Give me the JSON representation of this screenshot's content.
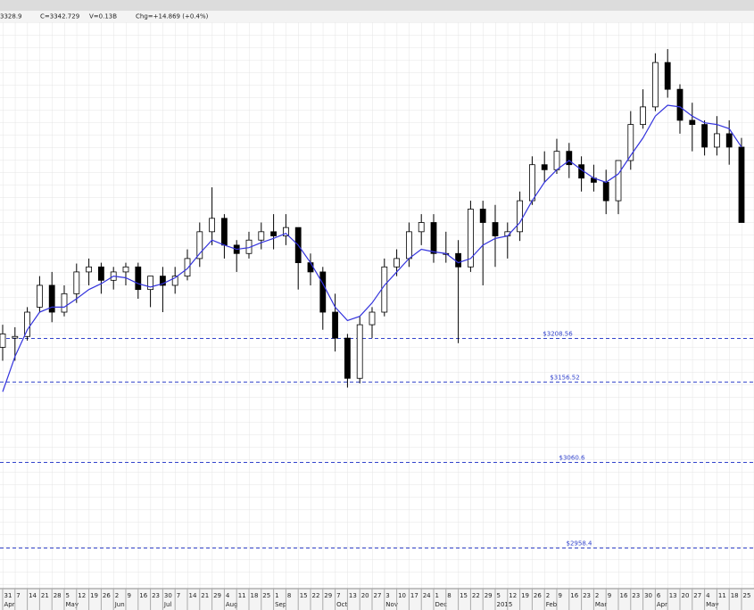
{
  "chart_data": {
    "type": "candlestick",
    "header": [
      "3328.9",
      "C=3342.729",
      "V=0.13B",
      "Chg=+14.869 (+0.4%)"
    ],
    "categories": [
      "31",
      "7",
      "14",
      "21",
      "28",
      "5",
      "12",
      "19",
      "26",
      "2",
      "9",
      "16",
      "23",
      "30",
      "7",
      "14",
      "21",
      "29",
      "4",
      "11",
      "18",
      "25",
      "1",
      "8",
      "15",
      "22",
      "29",
      "7",
      "13",
      "20",
      "27",
      "3",
      "10",
      "17",
      "24",
      "1",
      "8",
      "15",
      "22",
      "29",
      "5",
      "12",
      "19",
      "26",
      "2",
      "9",
      "16",
      "23",
      "2",
      "9",
      "16",
      "23",
      "30",
      "6",
      "13",
      "20",
      "27",
      "4",
      "11",
      "18",
      "25"
    ],
    "month_labels": [
      "Apr",
      null,
      null,
      null,
      null,
      "May",
      null,
      null,
      null,
      "Jun",
      null,
      null,
      null,
      "Jul",
      null,
      null,
      null,
      null,
      "Aug",
      null,
      null,
      null,
      "Sep",
      null,
      null,
      null,
      null,
      "Oct",
      null,
      null,
      null,
      "Nov",
      null,
      null,
      null,
      "Dec",
      null,
      null,
      null,
      null,
      "2015",
      null,
      null,
      null,
      "Feb",
      null,
      null,
      null,
      "Mar",
      null,
      null,
      null,
      null,
      "Apr",
      null,
      null,
      null,
      "May",
      null,
      null,
      null
    ],
    "open": [
      3198,
      3209,
      3211,
      3246,
      3272,
      3240,
      3262,
      3288,
      3294,
      3278,
      3288,
      3294,
      3267,
      3283,
      3272,
      3283,
      3304,
      3336,
      3352,
      3320,
      3310,
      3326,
      3336,
      3331,
      3341,
      3299,
      3288,
      3240,
      3209,
      3161,
      3225,
      3240,
      3294,
      3304,
      3336,
      3347,
      3310,
      3310,
      3294,
      3363,
      3347,
      3331,
      3336,
      3373,
      3416,
      3410,
      3432,
      3416,
      3400,
      3395,
      3373,
      3421,
      3464,
      3485,
      3538,
      3506,
      3469,
      3464,
      3437,
      3453,
      3437
    ],
    "high": [
      3225,
      3222,
      3246,
      3283,
      3288,
      3272,
      3298,
      3304,
      3299,
      3294,
      3299,
      3299,
      3283,
      3294,
      3294,
      3315,
      3347,
      3389,
      3357,
      3326,
      3336,
      3347,
      3357,
      3357,
      3341,
      3310,
      3294,
      3262,
      3214,
      3235,
      3246,
      3304,
      3315,
      3347,
      3357,
      3357,
      3336,
      3326,
      3373,
      3373,
      3368,
      3347,
      3384,
      3426,
      3432,
      3447,
      3442,
      3426,
      3416,
      3410,
      3421,
      3480,
      3506,
      3549,
      3554,
      3512,
      3490,
      3469,
      3474,
      3469,
      3448
    ],
    "low": [
      3182,
      3182,
      3206,
      3240,
      3228,
      3235,
      3251,
      3272,
      3262,
      3267,
      3272,
      3256,
      3246,
      3240,
      3262,
      3278,
      3294,
      3320,
      3304,
      3288,
      3304,
      3315,
      3315,
      3320,
      3267,
      3272,
      3219,
      3193,
      3150,
      3155,
      3209,
      3235,
      3283,
      3294,
      3320,
      3299,
      3299,
      3203,
      3288,
      3272,
      3294,
      3304,
      3325,
      3368,
      3395,
      3405,
      3400,
      3384,
      3384,
      3357,
      3357,
      3410,
      3459,
      3480,
      3496,
      3453,
      3432,
      3427,
      3427,
      3416,
      3347
    ],
    "close": [
      3214,
      3211,
      3240,
      3272,
      3240,
      3262,
      3288,
      3294,
      3278,
      3288,
      3294,
      3267,
      3283,
      3272,
      3283,
      3304,
      3336,
      3352,
      3320,
      3310,
      3326,
      3336,
      3331,
      3341,
      3299,
      3288,
      3240,
      3209,
      3161,
      3225,
      3240,
      3294,
      3304,
      3336,
      3347,
      3310,
      3310,
      3294,
      3363,
      3347,
      3331,
      3336,
      3373,
      3416,
      3410,
      3432,
      3416,
      3400,
      3395,
      3373,
      3421,
      3464,
      3485,
      3538,
      3506,
      3469,
      3464,
      3437,
      3453,
      3437,
      3347
    ],
    "moving_average": {
      "color": "#3333dd",
      "values": [
        3145,
        3187,
        3219,
        3240,
        3246,
        3246,
        3256,
        3267,
        3274,
        3283,
        3281,
        3274,
        3270,
        3274,
        3281,
        3292,
        3310,
        3326,
        3320,
        3315,
        3317,
        3323,
        3328,
        3334,
        3320,
        3299,
        3274,
        3246,
        3230,
        3235,
        3251,
        3272,
        3288,
        3304,
        3315,
        3312,
        3310,
        3299,
        3304,
        3320,
        3328,
        3331,
        3347,
        3373,
        3395,
        3410,
        3421,
        3410,
        3400,
        3395,
        3405,
        3427,
        3448,
        3474,
        3487,
        3485,
        3474,
        3466,
        3464,
        3459,
        3437
      ]
    },
    "hlines": [
      {
        "value": 3208.56,
        "label": "$3208.56"
      },
      {
        "value": 3156.52,
        "label": "$3156.52"
      },
      {
        "value": 3060.6,
        "label": "$3060.6"
      },
      {
        "value": 2958.4,
        "label": "$2958.4"
      }
    ],
    "hline_color": "#3344cc",
    "up_color": "#ffffff",
    "down_color": "#000000",
    "ylim": [
      2910,
      3586
    ]
  }
}
